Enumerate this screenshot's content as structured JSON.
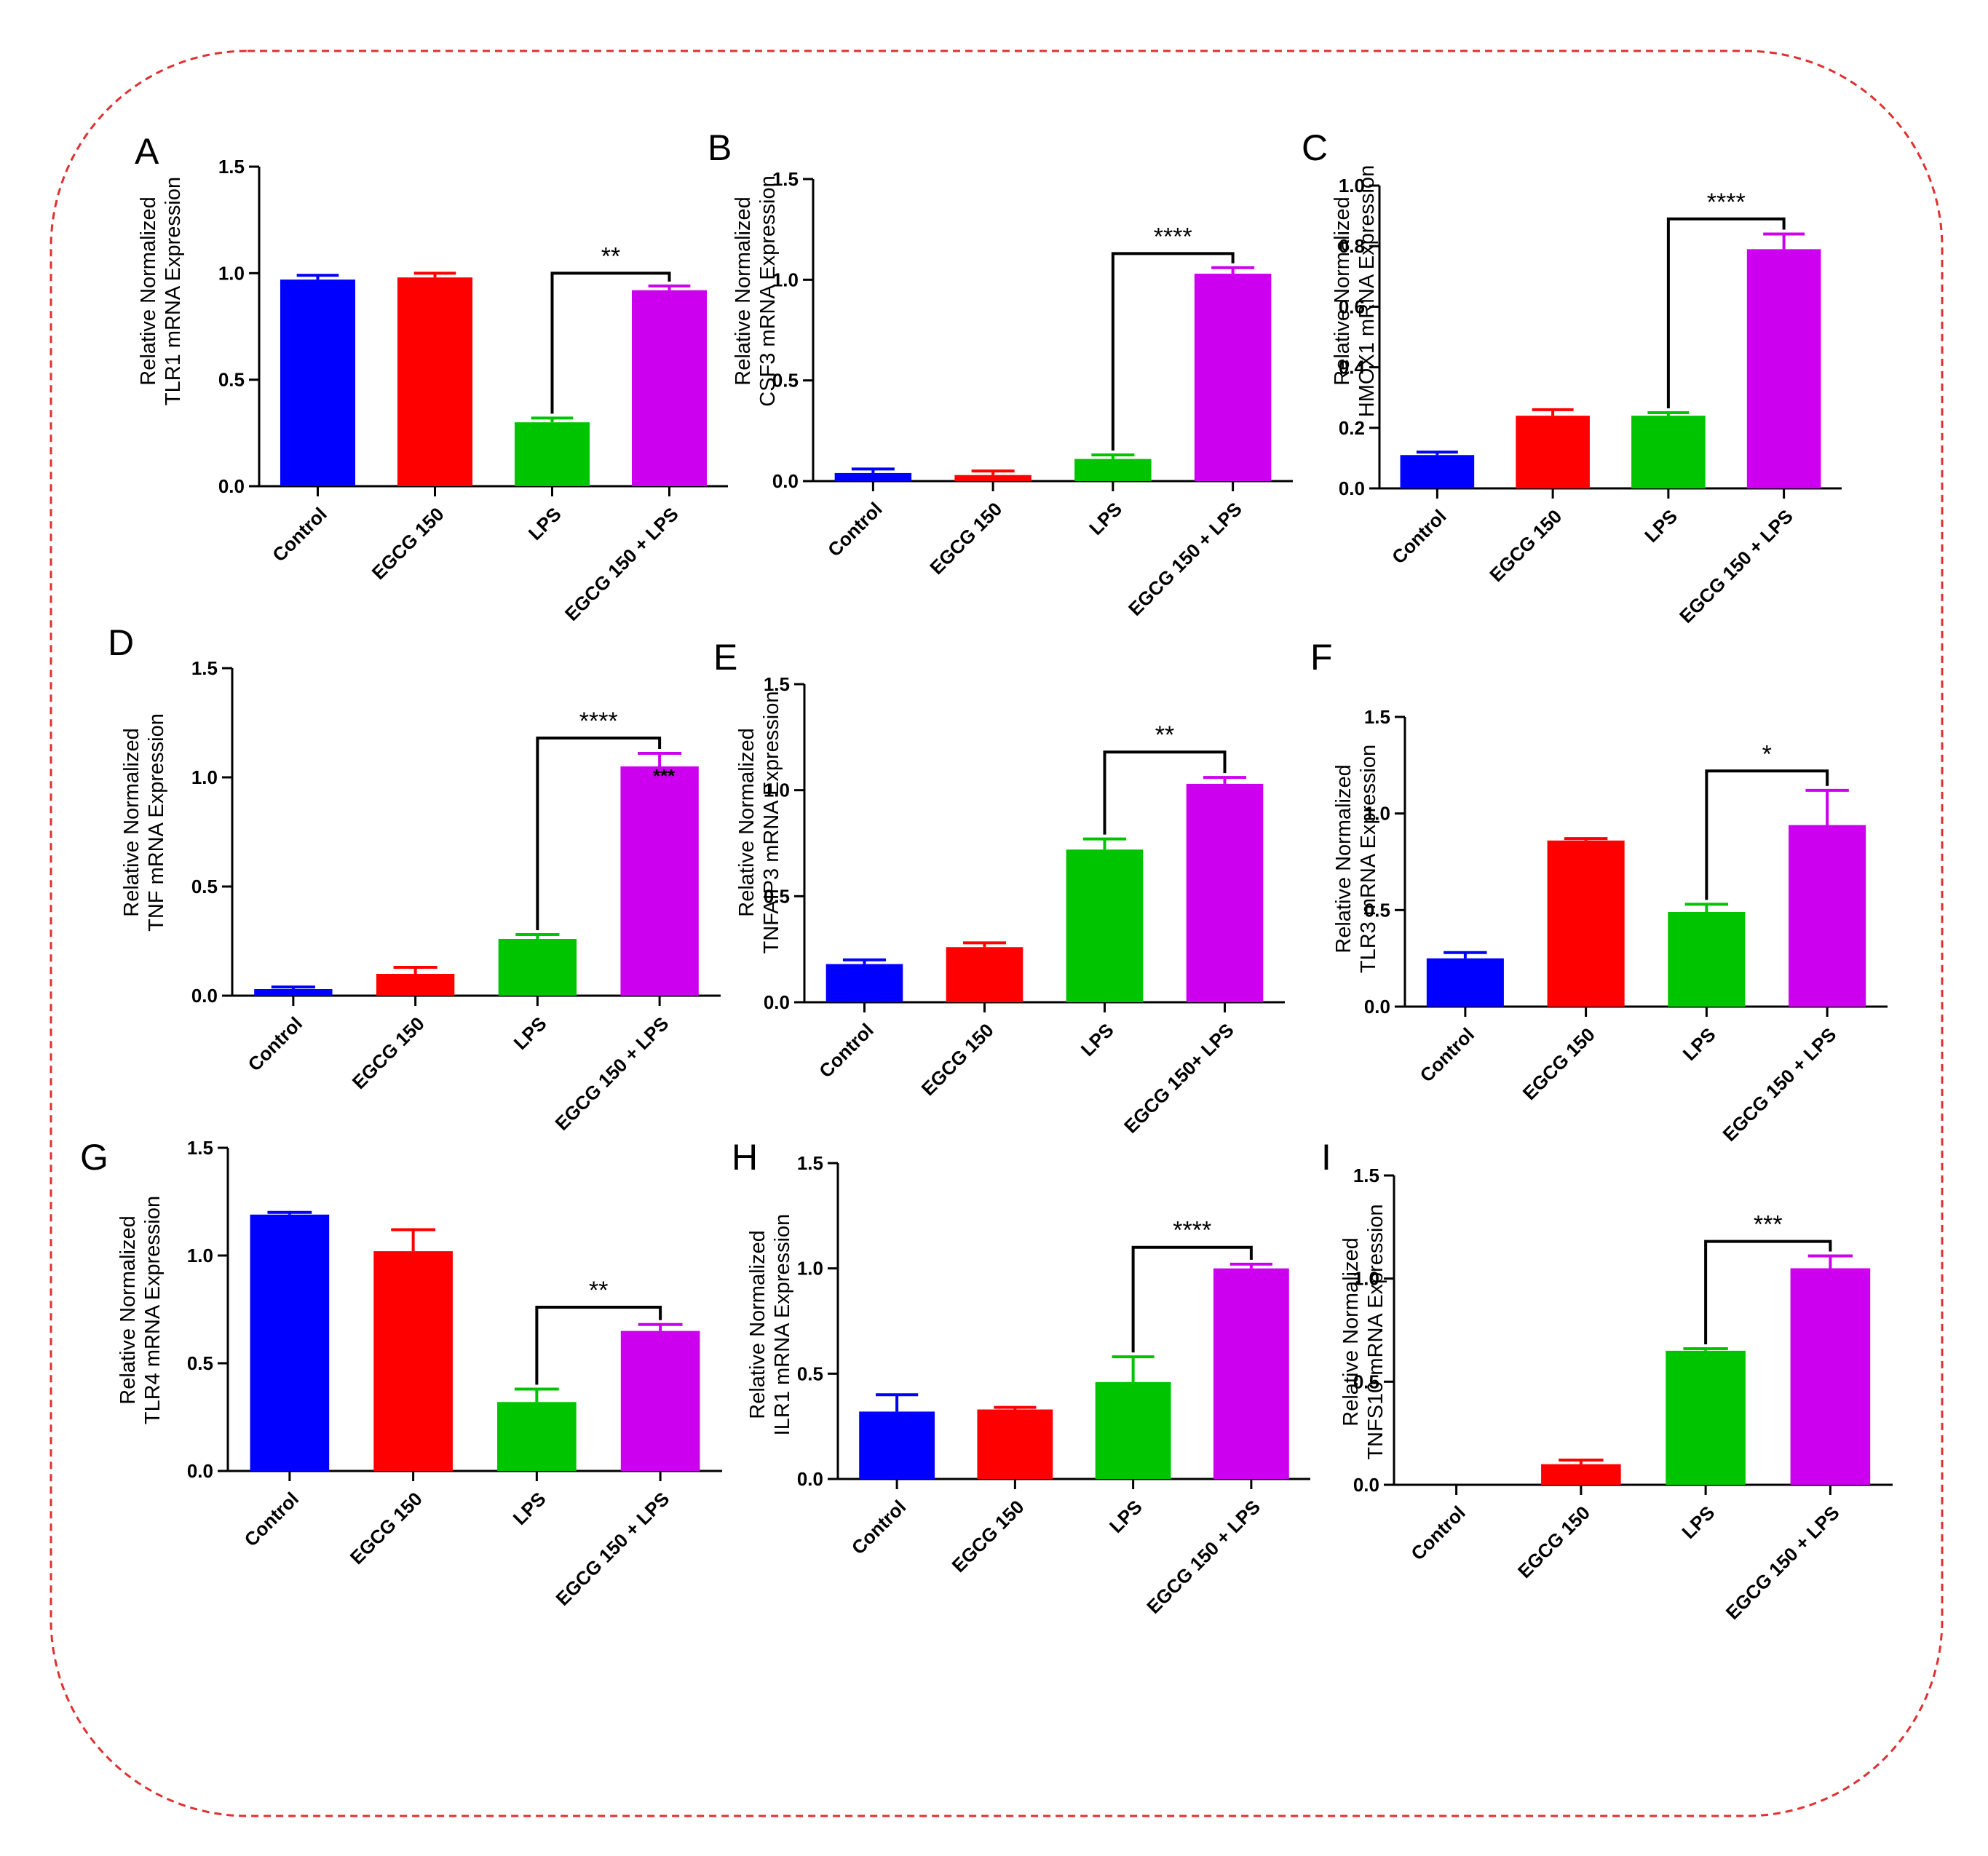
{
  "colors": {
    "Control": "#0000ff",
    "EGCG 150": "#ff0000",
    "LPS": "#00c400",
    "EGCG 150 + LPS": "#cc00ee",
    "frame": "#e03030"
  },
  "chart_data": [
    {
      "panel": "A",
      "type": "bar",
      "ylabel": [
        "Relative Normalized",
        "TLR1 mRNA Expression"
      ],
      "categories": [
        "Control",
        "EGCG 150",
        "LPS",
        "EGCG 150 + LPS"
      ],
      "values": [
        0.97,
        0.98,
        0.3,
        0.92
      ],
      "errors": [
        0.02,
        0.02,
        0.02,
        0.02
      ],
      "ylim": [
        0,
        1.5
      ],
      "yticks": [
        "0.0",
        "0.5",
        "1.0",
        "1.5"
      ],
      "ytickvals": [
        0,
        0.5,
        1.0,
        1.5
      ],
      "significance": {
        "from": 2,
        "to": 3,
        "label": "**",
        "bracket_y": 1.0
      }
    },
    {
      "panel": "B",
      "type": "bar",
      "ylabel": [
        "Relative Normalized",
        "CSF3 mRNA Expression"
      ],
      "categories": [
        "Control",
        "EGCG 150",
        "LPS",
        "EGCG 150 + LPS"
      ],
      "values": [
        0.04,
        0.03,
        0.11,
        1.03
      ],
      "errors": [
        0.02,
        0.02,
        0.02,
        0.03
      ],
      "ylim": [
        0,
        1.5
      ],
      "yticks": [
        "0.0",
        "0.5",
        "1.0",
        "1.5"
      ],
      "ytickvals": [
        0,
        0.5,
        1.0,
        1.5
      ],
      "significance": {
        "from": 2,
        "to": 3,
        "label": "****",
        "bracket_y": 1.13
      }
    },
    {
      "panel": "C",
      "type": "bar",
      "ylabel": [
        "Relative Normalized",
        "HMOX1 mRNA Expression"
      ],
      "categories": [
        "Control",
        "EGCG 150",
        "LPS",
        "EGCG 150 + LPS"
      ],
      "values": [
        0.11,
        0.24,
        0.24,
        0.79
      ],
      "errors": [
        0.01,
        0.02,
        0.01,
        0.05
      ],
      "ylim": [
        0,
        1.0
      ],
      "yticks": [
        "0.0",
        "0.2",
        "0.4",
        "0.6",
        "0.8",
        "1.0"
      ],
      "ytickvals": [
        0,
        0.2,
        0.4,
        0.6,
        0.8,
        1.0
      ],
      "significance": {
        "from": 2,
        "to": 3,
        "label": "****",
        "bracket_y": 0.89
      }
    },
    {
      "panel": "D",
      "type": "bar",
      "ylabel": [
        "Relative Normalized",
        "TNF mRNA Expression"
      ],
      "categories": [
        "Control",
        "EGCG 150",
        "LPS",
        "EGCG 150 + LPS"
      ],
      "values": [
        0.03,
        0.1,
        0.26,
        1.05
      ],
      "errors": [
        0.01,
        0.03,
        0.02,
        0.06
      ],
      "ylim": [
        0,
        1.5
      ],
      "yticks": [
        "0.0",
        "0.5",
        "1.0",
        "1.5"
      ],
      "ytickvals": [
        0,
        0.5,
        1.0,
        1.5
      ],
      "significance": {
        "from": 2,
        "to": 3,
        "label": "****",
        "bracket_y": 1.18
      },
      "inner_label": "***"
    },
    {
      "panel": "E",
      "type": "bar",
      "ylabel": [
        "Relative Normalized",
        "TNFAIP3 mRNA Expression"
      ],
      "categories": [
        "Control",
        "EGCG 150",
        "LPS",
        "EGCG 150+ LPS"
      ],
      "values": [
        0.18,
        0.26,
        0.72,
        1.03
      ],
      "errors": [
        0.02,
        0.02,
        0.05,
        0.03
      ],
      "ylim": [
        0,
        1.5
      ],
      "yticks": [
        "0.0",
        "0.5",
        "1.0",
        "1.5"
      ],
      "ytickvals": [
        0,
        0.5,
        1.0,
        1.5
      ],
      "significance": {
        "from": 2,
        "to": 3,
        "label": "**",
        "bracket_y": 1.18
      }
    },
    {
      "panel": "F",
      "type": "bar",
      "ylabel": [
        "Relative Normalized",
        "TLR3 mRNA Expression"
      ],
      "categories": [
        "Control",
        "EGCG 150",
        "LPS",
        "EGCG 150 + LPS"
      ],
      "values": [
        0.25,
        0.86,
        0.49,
        0.94
      ],
      "errors": [
        0.03,
        0.01,
        0.04,
        0.18
      ],
      "ylim": [
        0,
        1.5
      ],
      "yticks": [
        "0.0",
        "0.5",
        "1.0",
        "1.5"
      ],
      "ytickvals": [
        0,
        0.5,
        1.0,
        1.5
      ],
      "significance": {
        "from": 2,
        "to": 3,
        "label": "*",
        "bracket_y": 1.22
      }
    },
    {
      "panel": "G",
      "type": "bar",
      "ylabel": [
        "Relative Normalized",
        "TLR4 mRNA Expression"
      ],
      "categories": [
        "Control",
        "EGCG 150",
        "LPS",
        "EGCG 150 + LPS"
      ],
      "values": [
        1.19,
        1.02,
        0.32,
        0.65
      ],
      "errors": [
        0.01,
        0.1,
        0.06,
        0.03
      ],
      "ylim": [
        0,
        1.5
      ],
      "yticks": [
        "0.0",
        "0.5",
        "1.0",
        "1.5"
      ],
      "ytickvals": [
        0,
        0.5,
        1.0,
        1.5
      ],
      "significance": {
        "from": 2,
        "to": 3,
        "label": "**",
        "bracket_y": 0.76
      }
    },
    {
      "panel": "H",
      "type": "bar",
      "ylabel": [
        "Relative Normalized",
        "ILR1 mRNA Expression"
      ],
      "categories": [
        "Control",
        "EGCG 150",
        "LPS",
        "EGCG 150 + LPS"
      ],
      "values": [
        0.32,
        0.33,
        0.46,
        1.0
      ],
      "errors": [
        0.08,
        0.01,
        0.12,
        0.02
      ],
      "ylim": [
        0,
        1.5
      ],
      "yticks": [
        "0.0",
        "0.5",
        "1.0",
        "1.5"
      ],
      "ytickvals": [
        0,
        0.5,
        1.0,
        1.5
      ],
      "significance": {
        "from": 2,
        "to": 3,
        "label": "****",
        "bracket_y": 1.1
      }
    },
    {
      "panel": "I",
      "type": "bar",
      "ylabel": [
        "Relative Normalized",
        "TNFS10 mRNA Expression"
      ],
      "categories": [
        "Control",
        "EGCG 150",
        "LPS",
        "EGCG 150 + LPS"
      ],
      "values": [
        0.0,
        0.1,
        0.65,
        1.05
      ],
      "errors": [
        0.0,
        0.02,
        0.01,
        0.06
      ],
      "ylim": [
        0,
        1.5
      ],
      "yticks": [
        "0.0",
        "0.5",
        "1.0",
        "1.5"
      ],
      "ytickvals": [
        0,
        0.5,
        1.0,
        1.5
      ],
      "significance": {
        "from": 2,
        "to": 3,
        "label": "***",
        "bracket_y": 1.18
      }
    }
  ]
}
